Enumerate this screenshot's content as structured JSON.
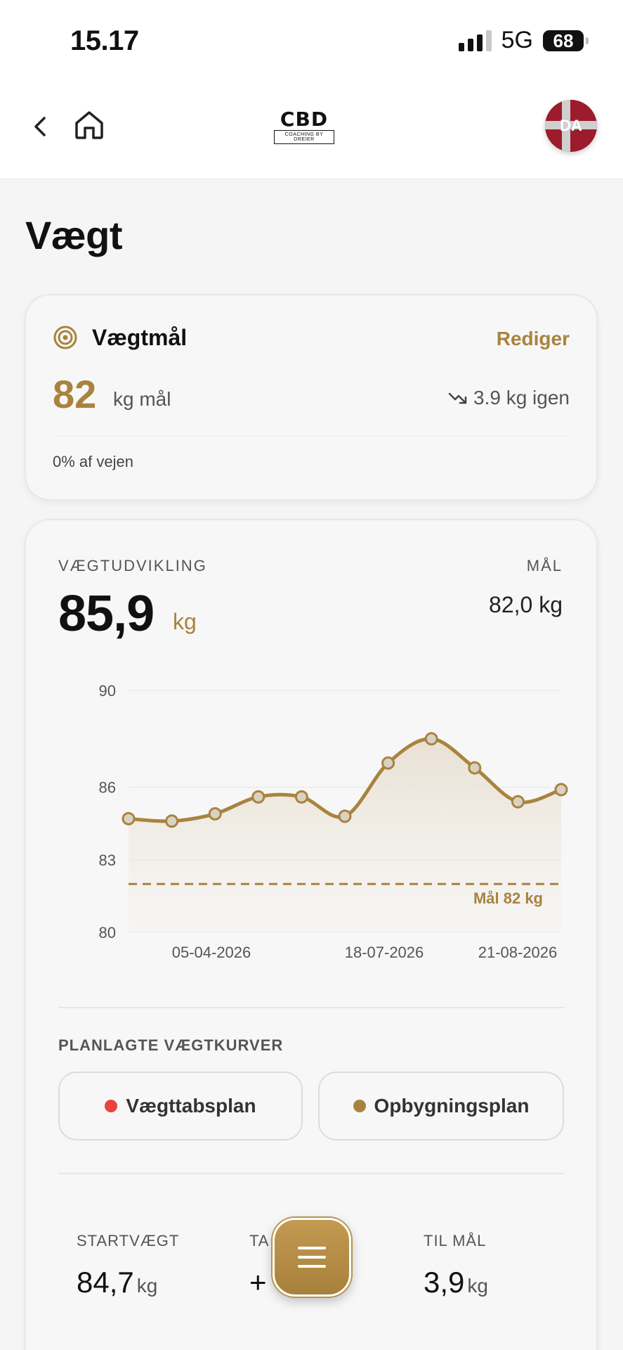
{
  "status_bar": {
    "time": "15.17",
    "network": "5G",
    "battery": "68"
  },
  "nav": {
    "logo_main": "CBD",
    "logo_sub": "COACHING BY DREIER",
    "avatar_initials": "DA"
  },
  "page": {
    "title": "Vægt"
  },
  "goal_card": {
    "title": "Vægtmål",
    "edit_label": "Rediger",
    "goal_value": "82",
    "goal_unit": "kg mål",
    "remaining": "3.9 kg igen",
    "progress_text": "0% af vejen"
  },
  "development": {
    "label": "VÆGTUDVIKLING",
    "current_value": "85,9",
    "unit": "kg",
    "goal_label": "MÅL",
    "goal_value": "82,0 kg"
  },
  "chart_data": {
    "type": "area",
    "y_ticks": [
      "90",
      "86",
      "83",
      "80"
    ],
    "ylim": [
      80,
      90
    ],
    "x_tick_labels": [
      "05-04-2026",
      "18-07-2026",
      "21-08-2026"
    ],
    "values": [
      84.7,
      84.6,
      84.9,
      85.6,
      85.6,
      84.8,
      87.0,
      88.0,
      86.8,
      85.4,
      85.9
    ],
    "goal_line": {
      "value": 82,
      "label": "Mål 82 kg"
    },
    "colors": {
      "line": "#a9833e",
      "point_fill": "#d9d2c4"
    }
  },
  "planned_curves": {
    "label": "PLANLAGTE VÆGTKURVER",
    "items": [
      {
        "label": "Vægttabsplan",
        "color": "#e8433f"
      },
      {
        "label": "Opbygningsplan",
        "color": "#a9833e"
      }
    ]
  },
  "stats": [
    {
      "label": "STARTVÆGT",
      "value": "84,7",
      "unit": "kg"
    },
    {
      "label": "TA",
      "value": "+",
      "unit": ""
    },
    {
      "label": "TIL MÅL",
      "value": "3,9",
      "unit": "kg"
    }
  ],
  "colors": {
    "accent": "#a9833e",
    "background": "#f5f5f5"
  }
}
